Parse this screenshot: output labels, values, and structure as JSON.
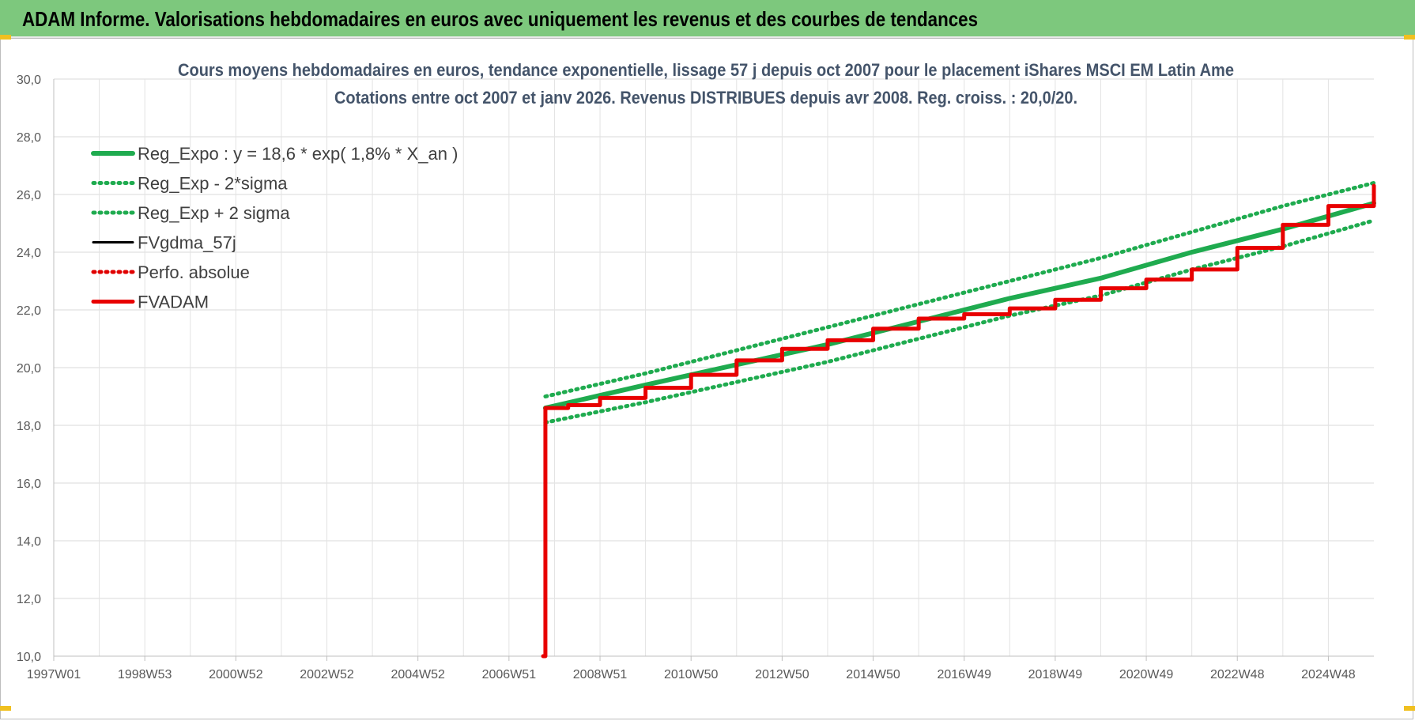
{
  "banner": {
    "title": "ADAM Informe. Valorisations hebdomadaires en euros avec uniquement les revenus et des courbes de tendances"
  },
  "chart_data": {
    "type": "line",
    "title": "Cours moyens hebdomadaires en euros, tendance exponentielle, lissage 57 j depuis oct 2007 pour le placement iShares MSCI EM Latin Ame",
    "subtitle": "Cotations entre oct 2007 et janv 2026. Revenus DISTRIBUES depuis avr 2008. Reg. croiss. : 20,0/20.",
    "xlabel": "",
    "ylabel": "",
    "ylim": [
      10,
      30
    ],
    "yticks": [
      "10,0",
      "12,0",
      "14,0",
      "16,0",
      "18,0",
      "20,0",
      "22,0",
      "24,0",
      "26,0",
      "28,0",
      "30,0"
    ],
    "xlim": [
      1997.0,
      2026.0
    ],
    "xticks": [
      {
        "label": "1997W01",
        "year": 1997.0
      },
      {
        "label": "1998W53",
        "year": 1999.0
      },
      {
        "label": "2000W52",
        "year": 2001.0
      },
      {
        "label": "2002W52",
        "year": 2003.0
      },
      {
        "label": "2004W52",
        "year": 2005.0
      },
      {
        "label": "2006W51",
        "year": 2007.0
      },
      {
        "label": "2008W51",
        "year": 2009.0
      },
      {
        "label": "2010W50",
        "year": 2011.0
      },
      {
        "label": "2012W50",
        "year": 2013.0
      },
      {
        "label": "2014W50",
        "year": 2015.0
      },
      {
        "label": "2016W49",
        "year": 2017.0
      },
      {
        "label": "2018W49",
        "year": 2019.0
      },
      {
        "label": "2020W49",
        "year": 2021.0
      },
      {
        "label": "2022W48",
        "year": 2023.0
      },
      {
        "label": "2024W48",
        "year": 2025.0
      }
    ],
    "grid": true,
    "legend_position": "top-left",
    "series": [
      {
        "name": "Reg_Expo : y = 18,6 * exp( 1,8% *  X_an )",
        "color": "#1fab4f",
        "style": "solid-thick",
        "x": [
          2007.8,
          2010,
          2012,
          2014,
          2016,
          2018,
          2020,
          2022,
          2024,
          2026
        ],
        "y": [
          18.6,
          19.4,
          20.1,
          20.8,
          21.6,
          22.4,
          23.1,
          24.0,
          24.8,
          25.7
        ]
      },
      {
        "name": "Reg_Exp - 2*sigma",
        "color": "#1fab4f",
        "style": "dotted",
        "x": [
          2007.8,
          2010,
          2012,
          2014,
          2016,
          2018,
          2020,
          2022,
          2024,
          2026
        ],
        "y": [
          18.1,
          18.8,
          19.5,
          20.2,
          21.0,
          21.8,
          22.5,
          23.4,
          24.2,
          25.1
        ]
      },
      {
        "name": "Reg_Exp + 2 sigma",
        "color": "#1fab4f",
        "style": "dotted",
        "x": [
          2007.8,
          2010,
          2012,
          2014,
          2016,
          2018,
          2020,
          2022,
          2024,
          2026
        ],
        "y": [
          19.0,
          19.8,
          20.6,
          21.4,
          22.2,
          23.0,
          23.8,
          24.7,
          25.6,
          26.4
        ]
      },
      {
        "name": "FVgdma_57j",
        "color": "#000000",
        "style": "solid",
        "x": [
          2007.8,
          2008.3,
          2009,
          2010,
          2011,
          2012,
          2013,
          2014,
          2015,
          2016,
          2017,
          2018,
          2019,
          2020,
          2021,
          2022,
          2023,
          2024,
          2025,
          2026
        ],
        "y": [
          18.6,
          18.7,
          18.95,
          19.3,
          19.75,
          20.25,
          20.65,
          20.95,
          21.35,
          21.7,
          21.85,
          22.05,
          22.35,
          22.75,
          23.05,
          23.4,
          24.15,
          24.95,
          25.6,
          26.3
        ]
      },
      {
        "name": "Perfo. absolue",
        "color": "#e00000",
        "style": "dotted",
        "x": [
          2007.8,
          2026
        ],
        "y": [
          18.6,
          26.3
        ]
      },
      {
        "name": "FVADAM",
        "color": "#e80000",
        "style": "step-thick",
        "x": [
          2007.75,
          2007.8,
          2008.3,
          2009,
          2010,
          2011,
          2012,
          2013,
          2014,
          2015,
          2016,
          2017,
          2018,
          2019,
          2020,
          2021,
          2022,
          2023,
          2024,
          2025,
          2026
        ],
        "y": [
          10.0,
          18.6,
          18.7,
          18.95,
          19.3,
          19.75,
          20.25,
          20.65,
          20.95,
          21.35,
          21.7,
          21.85,
          22.05,
          22.35,
          22.75,
          23.05,
          23.4,
          24.15,
          24.95,
          25.6,
          26.3
        ]
      }
    ]
  }
}
